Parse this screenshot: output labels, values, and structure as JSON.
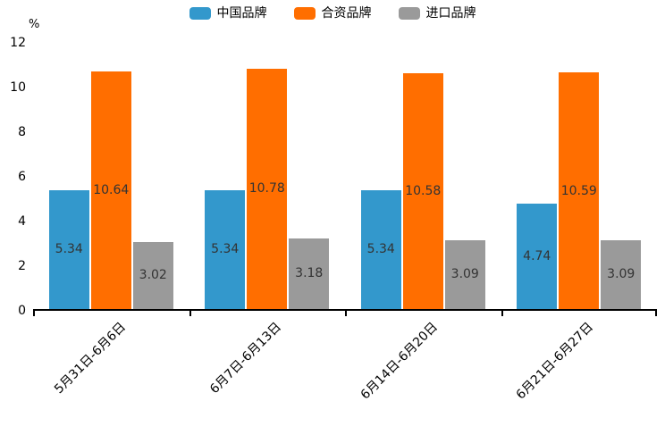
{
  "unit_label": "%",
  "legend": {
    "items": [
      {
        "label": "中国品牌",
        "color": "#3398CC"
      },
      {
        "label": "合资品牌",
        "color": "#FF6E00"
      },
      {
        "label": "进口品牌",
        "color": "#9A9A9A"
      }
    ]
  },
  "chart_data": {
    "type": "bar",
    "categories": [
      "5月31日-6月6日",
      "6月7日-6月13日",
      "6月14日-6月20日",
      "6月21日-6月27日"
    ],
    "series": [
      {
        "name": "中国品牌",
        "color": "#3398CC",
        "values": [
          5.34,
          5.34,
          5.34,
          4.74
        ]
      },
      {
        "name": "合资品牌",
        "color": "#FF6E00",
        "values": [
          10.64,
          10.78,
          10.58,
          10.59
        ]
      },
      {
        "name": "进口品牌",
        "color": "#9A9A9A",
        "values": [
          3.02,
          3.18,
          3.09,
          3.09
        ]
      }
    ],
    "title": "",
    "xlabel": "",
    "ylabel": "%",
    "ylim": [
      0,
      12
    ],
    "yticks": [
      0,
      2,
      4,
      6,
      8,
      10,
      12
    ],
    "grid": false,
    "legend_position": "top",
    "value_labels": "inside-center"
  },
  "colors": {
    "axis": "#000000",
    "value_label": "#333333",
    "background": "#ffffff"
  }
}
